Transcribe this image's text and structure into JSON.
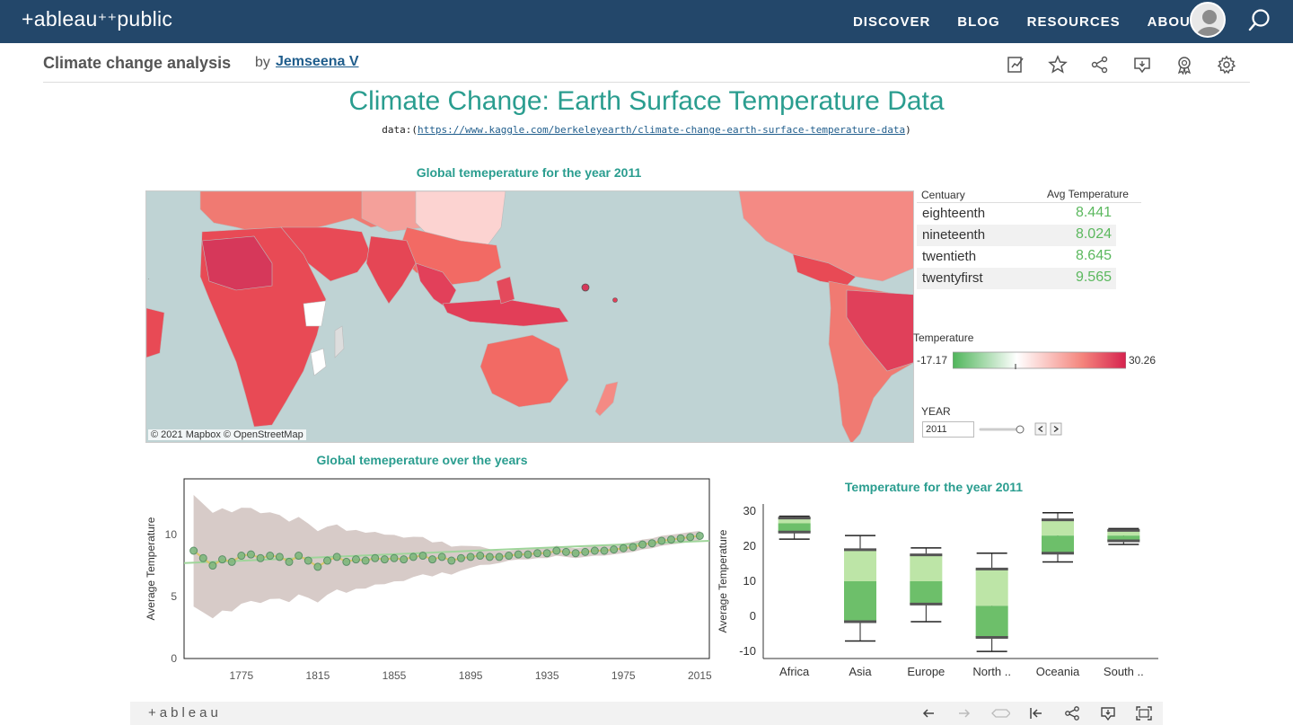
{
  "header": {
    "logo_text": "+ableau",
    "logo_suffix": "public",
    "nav": [
      "DISCOVER",
      "BLOG",
      "RESOURCES",
      "ABOUT"
    ]
  },
  "viz": {
    "title": "Climate change analysis",
    "by": "by",
    "author": "Jemseena V"
  },
  "dashboard": {
    "title": "Climate Change:  Earth Surface Temperature Data",
    "source_prefix": "data:(",
    "source_url": "https://www.kaggle.com/berkeleyearth/climate-change-earth-surface-temperature-data",
    "source_suffix": ")",
    "map_title": "Global temeperature for  the year  2011",
    "map_attribution": "© 2021 Mapbox  © OpenStreetMap",
    "line_title": "Global temeperature over the years",
    "box_title": "Temperature for the year 2011"
  },
  "century_table": {
    "col1": "Centuary",
    "col2": "Avg Temperature",
    "rows": [
      {
        "name": "eighteenth",
        "value": "8.441"
      },
      {
        "name": "nineteenth",
        "value": "8.024"
      },
      {
        "name": "twentieth",
        "value": "8.645"
      },
      {
        "name": "twentyfirst",
        "value": "9.565"
      }
    ]
  },
  "legend": {
    "title": "Temperature",
    "min": "-17.17",
    "max": "30.26"
  },
  "year_filter": {
    "label": "YEAR",
    "value": "2011"
  },
  "footer": {
    "brand": "+ableau"
  },
  "colors": {
    "nav_bg": "#23476a",
    "accent": "#2a9d8f",
    "value_green": "#5bb85e"
  },
  "chart_data": [
    {
      "type": "line",
      "title": "Global temeperature over the years",
      "ylabel": "Average Temperature",
      "xlabel": "",
      "xlim": [
        1745,
        2020
      ],
      "ylim": [
        0,
        14.5
      ],
      "x_ticks": [
        1775,
        1815,
        1855,
        1895,
        1935,
        1975,
        2015
      ],
      "y_ticks": [
        0,
        5,
        10
      ],
      "series": [
        {
          "x": [
            1750,
            1755,
            1760,
            1765,
            1770,
            1775,
            1780,
            1785,
            1790,
            1795,
            1800,
            1805,
            1810,
            1815,
            1820,
            1825,
            1830,
            1835,
            1840,
            1845,
            1850,
            1855,
            1860,
            1865,
            1870,
            1875,
            1880,
            1885,
            1890,
            1895,
            1900,
            1905,
            1910,
            1915,
            1920,
            1925,
            1930,
            1935,
            1940,
            1945,
            1950,
            1955,
            1960,
            1965,
            1970,
            1975,
            1980,
            1985,
            1990,
            1995,
            2000,
            2005,
            2010,
            2015
          ],
          "values": [
            8.7,
            8.1,
            7.5,
            8.0,
            7.8,
            8.3,
            8.4,
            8.1,
            8.3,
            8.2,
            7.8,
            8.3,
            7.9,
            7.4,
            7.9,
            8.2,
            7.8,
            8.0,
            7.9,
            8.1,
            8.0,
            8.1,
            8.0,
            8.2,
            8.3,
            8.0,
            8.2,
            7.9,
            8.1,
            8.2,
            8.3,
            8.2,
            8.2,
            8.3,
            8.4,
            8.4,
            8.5,
            8.5,
            8.7,
            8.6,
            8.5,
            8.6,
            8.7,
            8.7,
            8.8,
            8.9,
            9.0,
            9.2,
            9.3,
            9.5,
            9.6,
            9.7,
            9.8,
            9.9
          ]
        }
      ]
    },
    {
      "type": "box",
      "title": "Temperature for the year 2011",
      "ylabel": "Average Temperature",
      "categories": [
        "Africa",
        "Asia",
        "Europe",
        "North ..",
        "Oceania",
        "South .."
      ],
      "ylim": [
        -12,
        32
      ],
      "y_ticks": [
        -10,
        0,
        10,
        20,
        30
      ],
      "boxes": [
        {
          "min": 22,
          "q1": 24,
          "median": 26.5,
          "q3": 28,
          "max": 28.5
        },
        {
          "min": -7,
          "q1": -1.5,
          "median": 10,
          "q3": 19,
          "max": 23
        },
        {
          "min": -1.5,
          "q1": 3.5,
          "median": 10,
          "q3": 17.5,
          "max": 19.5
        },
        {
          "min": -10,
          "q1": -6,
          "median": 3,
          "q3": 13.5,
          "max": 18
        },
        {
          "min": 15.5,
          "q1": 18,
          "median": 23,
          "q3": 27.5,
          "max": 29.5
        },
        {
          "min": 20.5,
          "q1": 21.5,
          "median": 23,
          "q3": 24.5,
          "max": 25
        }
      ]
    }
  ]
}
